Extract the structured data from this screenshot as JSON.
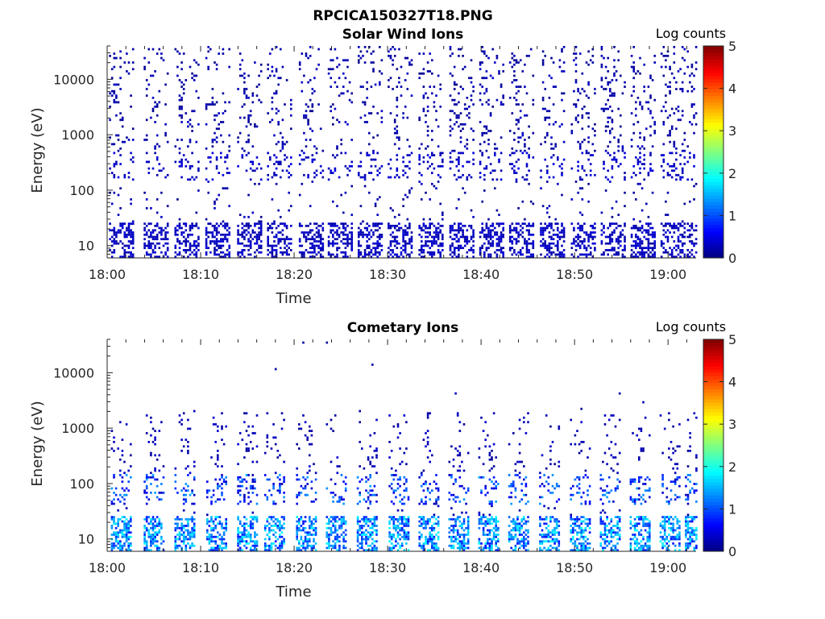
{
  "figure": {
    "title": "RPCICA150327T18.PNG"
  },
  "chart_data": [
    {
      "type": "heatmap",
      "title": "Solar Wind Ions",
      "xlabel": "Time",
      "ylabel": "Energy (eV)",
      "x_range": [
        "18:00",
        "19:03"
      ],
      "x_ticks": [
        "18:00",
        "18:10",
        "18:20",
        "18:30",
        "18:40",
        "18:50",
        "19:00"
      ],
      "y_scale": "log",
      "y_range": [
        6,
        40000
      ],
      "y_ticks": [
        "10",
        "100",
        "1000",
        "10000"
      ],
      "colorbar": {
        "label": "Log counts",
        "range": [
          0,
          5
        ],
        "ticks": [
          "0",
          "1",
          "2",
          "3",
          "4",
          "5"
        ],
        "colormap": "jet"
      },
      "sweep_times_min": [
        0.2,
        3.9,
        7.2,
        10.5,
        13.9,
        17.1,
        20.5,
        23.6,
        26.8,
        30.0,
        33.3,
        36.6,
        39.8,
        43.0,
        46.3,
        49.6,
        52.8,
        56.0,
        59.2,
        62.0
      ],
      "low_energy_band_eV": [
        6,
        25
      ],
      "low_band_log_counts": 0.3,
      "mid_band_eV": [
        150,
        500
      ],
      "typical_log_counts": 0.2
    },
    {
      "type": "heatmap",
      "title": "Cometary Ions",
      "xlabel": "Time",
      "ylabel": "Energy (eV)",
      "x_range": [
        "18:00",
        "19:03"
      ],
      "x_ticks": [
        "18:00",
        "18:10",
        "18:20",
        "18:30",
        "18:40",
        "18:50",
        "19:00"
      ],
      "y_scale": "log",
      "y_range": [
        6,
        40000
      ],
      "y_ticks": [
        "10",
        "100",
        "1000",
        "10000"
      ],
      "colorbar": {
        "label": "Log counts",
        "range": [
          0,
          5
        ],
        "ticks": [
          "0",
          "1",
          "2",
          "3",
          "4",
          "5"
        ],
        "colormap": "jet"
      },
      "sweep_times_min": [
        0.4,
        3.9,
        7.2,
        10.6,
        13.9,
        16.8,
        20.2,
        23.4,
        26.7,
        30.1,
        33.3,
        36.5,
        39.7,
        42.9,
        46.2,
        49.5,
        52.7,
        55.9,
        59.1,
        61.8
      ],
      "low_energy_band_eV": [
        6,
        25
      ],
      "low_band_log_counts": 1.6,
      "mid_band_eV": [
        40,
        150
      ],
      "mid_band_log_counts": 1.2,
      "typical_log_counts": 0.3
    }
  ]
}
